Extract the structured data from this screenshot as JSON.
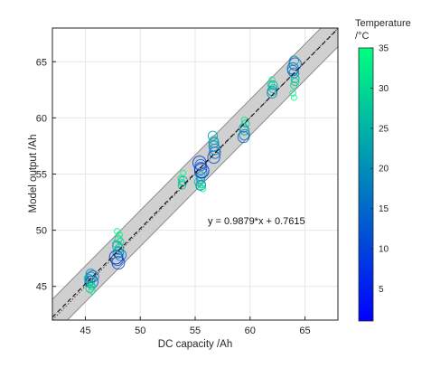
{
  "chart_data": {
    "type": "scatter",
    "title": "",
    "xlabel": "DC capacity /Ah",
    "ylabel": "Model output /Ah",
    "xlim": [
      42,
      68
    ],
    "ylim": [
      42,
      68
    ],
    "x_ticks": [
      45,
      50,
      55,
      60,
      65
    ],
    "y_ticks": [
      45,
      50,
      55,
      60,
      65
    ],
    "grid": true,
    "fit_equation": "y = 0.9879*x + 0.7615",
    "fit": {
      "slope": 0.9879,
      "intercept": 0.7615
    },
    "identity_line": true,
    "confidence_band": 1.6,
    "colorbar": {
      "title_line1": "Temperature",
      "title_line2": "/°C",
      "range": [
        1,
        35
      ],
      "ticks": [
        5,
        10,
        15,
        20,
        25,
        30,
        35
      ],
      "colormap": "winter (blue to green)"
    },
    "clusters": [
      {
        "x": 45.5,
        "points": [
          [
            45.3,
            45.3,
            25
          ],
          [
            45.4,
            45.5,
            22
          ],
          [
            45.5,
            45.8,
            18
          ],
          [
            45.6,
            45.4,
            12
          ],
          [
            45.5,
            45.2,
            28
          ],
          [
            45.7,
            45.9,
            15
          ],
          [
            45.6,
            45.0,
            30
          ],
          [
            45.4,
            44.8,
            27
          ],
          [
            45.5,
            46.1,
            20
          ],
          [
            45.3,
            45.7,
            24
          ],
          [
            45.6,
            44.6,
            32
          ]
        ]
      },
      {
        "x": 48.0,
        "points": [
          [
            47.9,
            47.4,
            12
          ],
          [
            48.0,
            48.0,
            18
          ],
          [
            48.1,
            48.4,
            25
          ],
          [
            47.8,
            48.8,
            30
          ],
          [
            48.0,
            49.2,
            28
          ],
          [
            48.2,
            47.8,
            15
          ],
          [
            47.9,
            48.6,
            22
          ],
          [
            48.1,
            49.6,
            33
          ],
          [
            48.0,
            47.1,
            10
          ],
          [
            47.8,
            47.6,
            8
          ],
          [
            48.0,
            48.2,
            26
          ],
          [
            48.2,
            49.0,
            31
          ],
          [
            47.9,
            49.9,
            34
          ]
        ]
      },
      {
        "x": 53.8,
        "points": [
          [
            53.8,
            54.2,
            30
          ],
          [
            53.7,
            54.6,
            33
          ],
          [
            53.9,
            55.1,
            35
          ],
          [
            53.8,
            54.0,
            27
          ],
          [
            53.9,
            54.4,
            24
          ]
        ]
      },
      {
        "x": 55.5,
        "points": [
          [
            55.4,
            53.9,
            30
          ],
          [
            55.5,
            54.5,
            25
          ],
          [
            55.6,
            55.1,
            18
          ],
          [
            55.5,
            55.5,
            12
          ],
          [
            55.4,
            56.0,
            8
          ],
          [
            55.6,
            54.1,
            28
          ],
          [
            55.5,
            54.8,
            22
          ],
          [
            55.7,
            53.7,
            33
          ],
          [
            55.5,
            55.8,
            15
          ],
          [
            55.3,
            54.3,
            26
          ],
          [
            55.6,
            55.3,
            5
          ],
          [
            55.5,
            54.0,
            20
          ]
        ]
      },
      {
        "x": 56.7,
        "points": [
          [
            56.7,
            56.5,
            12
          ],
          [
            56.8,
            57.2,
            18
          ],
          [
            56.7,
            57.8,
            20
          ],
          [
            56.6,
            58.4,
            22
          ],
          [
            56.8,
            56.9,
            15
          ],
          [
            56.7,
            58.0,
            25
          ],
          [
            56.7,
            57.5,
            19
          ]
        ]
      },
      {
        "x": 59.5,
        "points": [
          [
            59.5,
            58.5,
            18
          ],
          [
            59.4,
            59.1,
            24
          ],
          [
            59.6,
            59.5,
            28
          ],
          [
            59.5,
            58.9,
            22
          ],
          [
            59.5,
            59.8,
            32
          ],
          [
            59.4,
            58.3,
            15
          ]
        ]
      },
      {
        "x": 62.0,
        "points": [
          [
            62.0,
            62.2,
            20
          ],
          [
            62.1,
            62.6,
            26
          ],
          [
            61.9,
            63.0,
            30
          ],
          [
            62.0,
            63.4,
            33
          ],
          [
            62.1,
            62.9,
            24
          ],
          [
            62.0,
            62.4,
            22
          ]
        ]
      },
      {
        "x": 64.0,
        "points": [
          [
            63.9,
            62.2,
            33
          ],
          [
            64.0,
            62.9,
            30
          ],
          [
            64.1,
            63.5,
            26
          ],
          [
            64.0,
            64.0,
            20
          ],
          [
            63.9,
            64.4,
            15
          ],
          [
            64.1,
            64.8,
            12
          ],
          [
            64.0,
            65.1,
            22
          ],
          [
            64.0,
            61.8,
            35
          ],
          [
            64.1,
            63.2,
            28
          ],
          [
            63.9,
            64.2,
            18
          ]
        ]
      }
    ]
  }
}
